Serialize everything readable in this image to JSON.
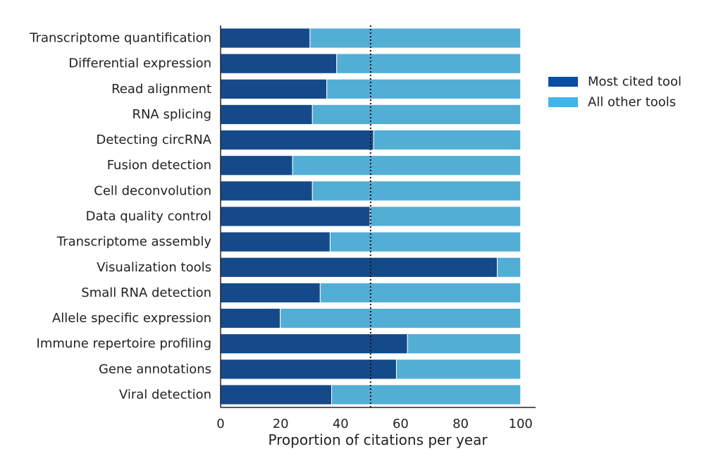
{
  "chart_data": {
    "type": "bar",
    "orientation": "horizontal",
    "stacked": true,
    "categories": [
      "Transcriptome quantification",
      "Differential expression",
      "Read alignment",
      "RNA splicing",
      "Detecting circRNA",
      "Fusion detection",
      "Cell deconvolution",
      "Data quality control",
      "Transcriptome assembly",
      "Visualization tools",
      "Small RNA detection",
      "Allele specific expression",
      "Immune repertoire profiling",
      "Gene annotations",
      "Viral detection"
    ],
    "series": [
      {
        "name": "Most cited tool",
        "color": "#154a8a",
        "values": [
          29.8,
          38.7,
          35.4,
          30.6,
          51.0,
          24.0,
          30.6,
          49.8,
          36.5,
          92.2,
          33.2,
          19.9,
          62.3,
          58.6,
          37.0
        ]
      },
      {
        "name": "All other tools",
        "color": "#53aed6",
        "values": [
          70.2,
          61.3,
          64.6,
          69.4,
          49.0,
          76.0,
          69.4,
          50.2,
          63.5,
          7.8,
          66.8,
          80.1,
          37.7,
          41.4,
          63.0
        ]
      }
    ],
    "legend_swatch_colors": [
      "#0a4ea3",
      "#3fb6ea"
    ],
    "xlabel": "Proportion of citations per year",
    "ylabel": "",
    "xlim": [
      0,
      105
    ],
    "xticks": [
      0,
      20,
      40,
      60,
      80,
      100
    ],
    "reference_line": 50,
    "legend_position": "right",
    "grid": false
  }
}
